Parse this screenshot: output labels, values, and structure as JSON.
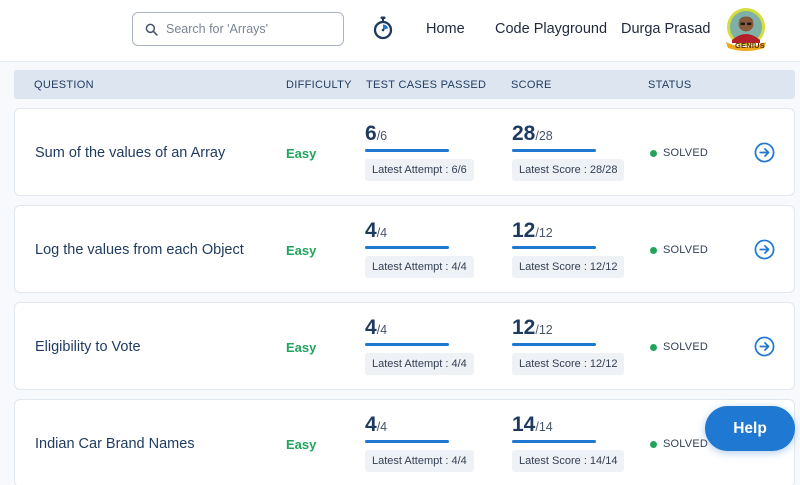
{
  "header": {
    "search": {
      "placeholder": "Search for 'Arrays'",
      "value": ""
    },
    "icons": {
      "search": "search-icon",
      "timer": "stopwatch-icon"
    },
    "nav": [
      {
        "label": "Home"
      },
      {
        "label": "Code Playground"
      }
    ],
    "user": {
      "name": "Durga Prasad",
      "badge": "GENIUS"
    }
  },
  "table": {
    "columns": {
      "question": "QUESTION",
      "difficulty": "DIFFICULTY",
      "tests": "TEST CASES PASSED",
      "score": "SCORE",
      "status": "STATUS"
    },
    "rows": [
      {
        "question": "Sum of the values of an Array",
        "difficulty": "Easy",
        "tests_passed": "6",
        "tests_total": "/6",
        "tests_progress": 1.0,
        "latest_attempt": "Latest Attempt : 6/6",
        "score": "28",
        "score_total": "/28",
        "score_progress": 1.0,
        "latest_score": "Latest Score : 28/28",
        "status": "SOLVED"
      },
      {
        "question": "Log the values from each Object",
        "difficulty": "Easy",
        "tests_passed": "4",
        "tests_total": "/4",
        "tests_progress": 1.0,
        "latest_attempt": "Latest Attempt : 4/4",
        "score": "12",
        "score_total": "/12",
        "score_progress": 1.0,
        "latest_score": "Latest Score : 12/12",
        "status": "SOLVED"
      },
      {
        "question": "Eligibility to Vote",
        "difficulty": "Easy",
        "tests_passed": "4",
        "tests_total": "/4",
        "tests_progress": 1.0,
        "latest_attempt": "Latest Attempt : 4/4",
        "score": "12",
        "score_total": "/12",
        "score_progress": 1.0,
        "latest_score": "Latest Score : 12/12",
        "status": "SOLVED"
      },
      {
        "question": "Indian Car Brand Names",
        "difficulty": "Easy",
        "tests_passed": "4",
        "tests_total": "/4",
        "tests_progress": 1.0,
        "latest_attempt": "Latest Attempt : 4/4",
        "score": "14",
        "score_total": "/14",
        "score_progress": 1.0,
        "latest_score": "Latest Score : 14/14",
        "status": "SOLVED"
      }
    ]
  },
  "help": {
    "label": "Help"
  },
  "colors": {
    "accent": "#1f78d1",
    "easy": "#22a45d",
    "solved_dot": "#22a45d",
    "header_bg": "#dde5f1"
  }
}
